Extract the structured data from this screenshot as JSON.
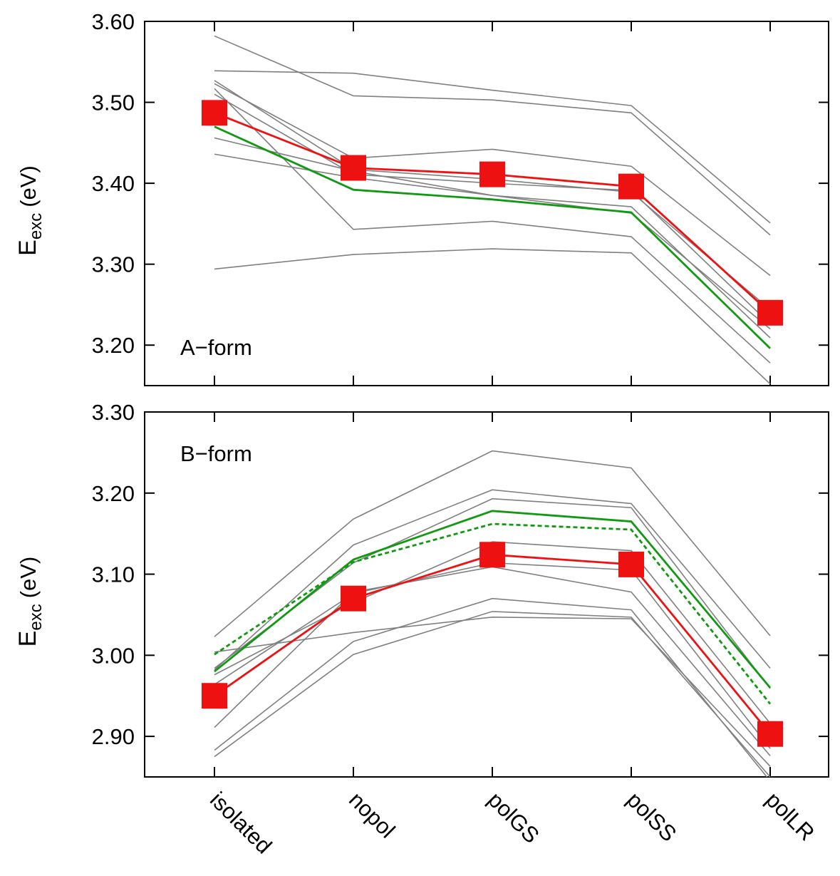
{
  "chart_data": [
    {
      "type": "line",
      "annotation": "A−form",
      "ylabel": "E",
      "ylabel_sub": "exc",
      "ylabel_unit": "(eV)",
      "ylim": [
        3.15,
        3.6
      ],
      "yticks": [
        {
          "value": 3.2,
          "label": "3.20"
        },
        {
          "value": 3.3,
          "label": "3.30"
        },
        {
          "value": 3.4,
          "label": "3.40"
        },
        {
          "value": 3.5,
          "label": "3.50"
        },
        {
          "value": 3.6,
          "label": "3.60"
        }
      ],
      "series": [
        {
          "color": "#808080",
          "values": [
            3.582,
            3.508,
            3.503,
            3.487,
            3.336
          ]
        },
        {
          "color": "#808080",
          "values": [
            3.539,
            3.536,
            3.515,
            3.496,
            3.351
          ]
        },
        {
          "color": "#808080",
          "values": [
            3.527,
            3.417,
            3.405,
            3.389,
            3.244
          ]
        },
        {
          "color": "#808080",
          "values": [
            3.523,
            3.431,
            3.442,
            3.421,
            3.286
          ]
        },
        {
          "color": "#808080",
          "values": [
            3.517,
            3.343,
            3.353,
            3.334,
            3.178
          ]
        },
        {
          "color": "#808080",
          "values": [
            3.51,
            3.411,
            3.4,
            3.391,
            3.226
          ]
        },
        {
          "color": "#808080",
          "values": [
            3.456,
            3.415,
            3.385,
            3.371,
            3.209
          ]
        },
        {
          "color": "#808080",
          "values": [
            3.436,
            3.407,
            3.385,
            3.363,
            3.22
          ]
        },
        {
          "color": "#808080",
          "values": [
            3.294,
            3.312,
            3.319,
            3.314,
            3.152
          ]
        },
        {
          "color": "#119911",
          "values": [
            3.47,
            3.392,
            3.38,
            3.364,
            3.196
          ]
        },
        {
          "color": "#ee1111",
          "values": [
            3.487,
            3.419,
            3.411,
            3.396,
            3.24
          ],
          "marker": "square"
        }
      ]
    },
    {
      "type": "line",
      "annotation": "B−form",
      "ylabel": "E",
      "ylabel_sub": "exc",
      "ylabel_unit": "(eV)",
      "categories": [
        "isolated",
        "nopol",
        "polGS",
        "polSS",
        "polLR"
      ],
      "ylim": [
        2.85,
        3.3
      ],
      "yticks": [
        {
          "value": 2.9,
          "label": "2.90"
        },
        {
          "value": 3.0,
          "label": "3.00"
        },
        {
          "value": 3.1,
          "label": "3.10"
        },
        {
          "value": 3.2,
          "label": "3.20"
        },
        {
          "value": 3.3,
          "label": "3.30"
        }
      ],
      "series": [
        {
          "color": "#808080",
          "values": [
            3.023,
            3.168,
            3.252,
            3.231,
            3.024
          ]
        },
        {
          "color": "#808080",
          "values": [
            2.982,
            3.136,
            3.204,
            3.187,
            2.984
          ]
        },
        {
          "color": "#808080",
          "values": [
            2.984,
            3.114,
            3.193,
            3.182,
            2.959
          ]
        },
        {
          "color": "#808080",
          "values": [
            2.976,
            3.065,
            3.14,
            3.129,
            2.916
          ]
        },
        {
          "color": "#808080",
          "values": [
            2.964,
            3.076,
            3.114,
            3.105,
            2.885
          ]
        },
        {
          "color": "#808080",
          "values": [
            2.911,
            3.078,
            3.109,
            3.078,
            2.876
          ]
        },
        {
          "color": "#808080",
          "values": [
            3.004,
            3.028,
            3.047,
            3.045,
            2.863
          ]
        },
        {
          "color": "#808080",
          "values": [
            2.883,
            3.017,
            3.07,
            3.056,
            2.845
          ]
        },
        {
          "color": "#808080",
          "values": [
            2.875,
            3.001,
            3.054,
            3.047,
            2.85
          ]
        },
        {
          "color": "#119911",
          "values": [
            3.001,
            3.115,
            3.162,
            3.155,
            2.94
          ],
          "dashed": true
        },
        {
          "color": "#119911",
          "values": [
            2.98,
            3.118,
            3.178,
            3.165,
            2.96
          ]
        },
        {
          "color": "#ee1111",
          "values": [
            2.95,
            3.07,
            3.124,
            3.112,
            2.903
          ],
          "marker": "square"
        }
      ]
    }
  ]
}
